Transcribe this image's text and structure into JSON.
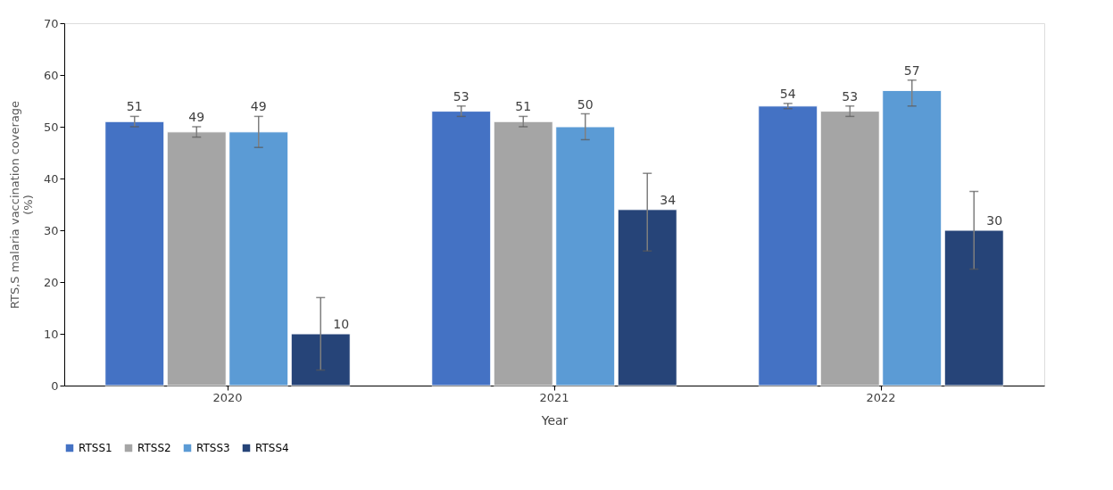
{
  "chart_data": {
    "type": "bar",
    "xlabel": "Year",
    "ylabel": "RTS,S malaria vaccination coverage (%)",
    "categories": [
      "2020",
      "2021",
      "2022"
    ],
    "series": [
      {
        "name": "RTSS1",
        "color": "#4472c4",
        "values": [
          51,
          53,
          54
        ],
        "errors": [
          [
            50,
            52
          ],
          [
            52,
            54
          ],
          [
            53.5,
            54.5
          ]
        ]
      },
      {
        "name": "RTSS2",
        "color": "#a5a5a5",
        "values": [
          49,
          51,
          53
        ],
        "errors": [
          [
            48,
            50
          ],
          [
            50,
            52
          ],
          [
            52,
            54
          ]
        ]
      },
      {
        "name": "RTSS3",
        "color": "#5b9bd5",
        "values": [
          49,
          50,
          57
        ],
        "errors": [
          [
            46,
            52
          ],
          [
            47.5,
            52.5
          ],
          [
            54,
            59
          ]
        ]
      },
      {
        "name": "RTSS4",
        "color": "#264478",
        "values": [
          10,
          34,
          30
        ],
        "errors": [
          [
            3,
            17
          ],
          [
            26,
            41
          ],
          [
            22.5,
            37.5
          ]
        ]
      }
    ],
    "ylim": [
      0,
      70
    ],
    "yticks": [
      0,
      10,
      20,
      30,
      40,
      50,
      60,
      70
    ],
    "data_labels": true,
    "grid": false,
    "legend": "bottom"
  }
}
